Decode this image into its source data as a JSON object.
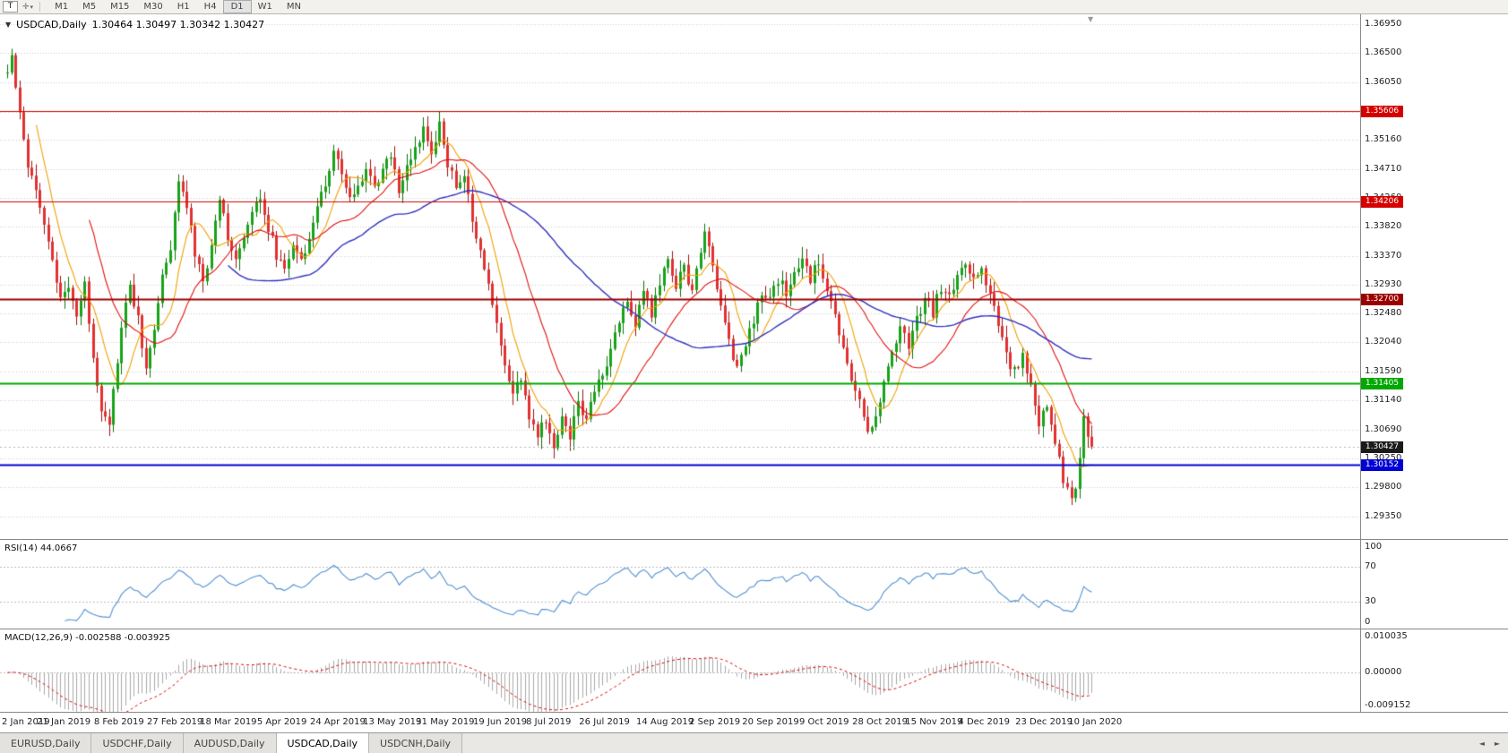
{
  "icons": {
    "collapse": "▼",
    "dropdown": "▾",
    "crosshair": "✛",
    "shift_marker": "▼",
    "tab_left": "◄",
    "tab_right": "►"
  },
  "toolbar": {
    "annotation_button": "T",
    "timeframes": [
      "M1",
      "M5",
      "M15",
      "M30",
      "H1",
      "H4",
      "D1",
      "W1",
      "MN"
    ],
    "active_timeframe": "D1"
  },
  "chart_header": {
    "symbol": "USDCAD,Daily",
    "ohlc": "1.30464 1.30497 1.30342 1.30427"
  },
  "price_axis": {
    "max": 1.371,
    "min": 1.29,
    "gridline_labels": [
      "1.36950",
      "1.36500",
      "1.36050",
      "1.35600",
      "1.35160",
      "1.34710",
      "1.34260",
      "1.33820",
      "1.33370",
      "1.32930",
      "1.32480",
      "1.32040",
      "1.31590",
      "1.31140",
      "1.30690",
      "1.30250",
      "1.29800",
      "1.29350"
    ]
  },
  "horizontal_lines": [
    {
      "price": 1.35606,
      "label": "1.35606",
      "color": "#d40000",
      "width": 1
    },
    {
      "price": 1.34206,
      "label": "1.34206",
      "color": "#d40000",
      "width": 1
    },
    {
      "price": 1.327,
      "label": "1.32700",
      "color": "#9b0000",
      "width": 2
    },
    {
      "price": 1.31405,
      "label": "1.31405",
      "color": "#00a800",
      "width": 2
    },
    {
      "price": 1.30152,
      "label": "1.30152",
      "color": "#0000d4",
      "width": 2
    }
  ],
  "current_price": {
    "value": 1.30427,
    "label": "1.30427",
    "box_color": "#1a1a1a"
  },
  "rsi_panel": {
    "label": "RSI(14) 44.0667",
    "value": 44.0667,
    "axis_labels": [
      "100",
      "70",
      "30",
      "0"
    ],
    "levels": [
      70,
      30
    ],
    "line_color": "#4f8fd0"
  },
  "macd_panel": {
    "label": "MACD(12,26,9) -0.002588 -0.003925",
    "main_value": -0.002588,
    "signal_value": -0.003925,
    "axis_labels": [
      "0.010035",
      "0.00000",
      "-0.009152"
    ],
    "axis_max": 0.010035,
    "axis_min": -0.009152,
    "histogram_color": "#a8a8a8",
    "signal_color": "#e00000"
  },
  "date_axis": {
    "labels": [
      "2 Jan 2019",
      "21 Jan 2019",
      "8 Feb 2019",
      "27 Feb 2019",
      "18 Mar 2019",
      "5 Apr 2019",
      "24 Apr 2019",
      "13 May 2019",
      "31 May 2019",
      "19 Jun 2019",
      "8 Jul 2019",
      "26 Jul 2019",
      "14 Aug 2019",
      "2 Sep 2019",
      "20 Sep 2019",
      "9 Oct 2019",
      "28 Oct 2019",
      "15 Nov 2019",
      "4 Dec 2019",
      "23 Dec 2019",
      "10 Jan 2020"
    ],
    "bar_indices": [
      0,
      13,
      27,
      40,
      53,
      67,
      80,
      93,
      106,
      120,
      133,
      146,
      160,
      173,
      186,
      200,
      213,
      226,
      239,
      253,
      266
    ]
  },
  "tabs": {
    "items": [
      {
        "label": "EURUSD,Daily",
        "active": false
      },
      {
        "label": "USDCHF,Daily",
        "active": false
      },
      {
        "label": "AUDUSD,Daily",
        "active": false
      },
      {
        "label": "USDCAD,Daily",
        "active": true
      },
      {
        "label": "USDCNH,Daily",
        "active": false
      }
    ]
  },
  "chart_data": {
    "type": "candlestick",
    "symbol": "USDCAD",
    "timeframe": "Daily",
    "bars": 267,
    "first_open": 1.362,
    "last_close": 1.30427,
    "close_anchors": [
      [
        0,
        1.362
      ],
      [
        1,
        1.3645
      ],
      [
        3,
        1.356
      ],
      [
        5,
        1.348
      ],
      [
        7,
        1.3445
      ],
      [
        9,
        1.339
      ],
      [
        11,
        1.333
      ],
      [
        13,
        1.3265
      ],
      [
        15,
        1.3295
      ],
      [
        17,
        1.3245
      ],
      [
        19,
        1.329
      ],
      [
        21,
        1.318
      ],
      [
        23,
        1.3105
      ],
      [
        25,
        1.308
      ],
      [
        26,
        1.3125
      ],
      [
        28,
        1.3225
      ],
      [
        30,
        1.329
      ],
      [
        32,
        1.324
      ],
      [
        34,
        1.316
      ],
      [
        36,
        1.3225
      ],
      [
        38,
        1.331
      ],
      [
        40,
        1.334
      ],
      [
        42,
        1.346
      ],
      [
        44,
        1.341
      ],
      [
        46,
        1.334
      ],
      [
        48,
        1.3295
      ],
      [
        50,
        1.335
      ],
      [
        52,
        1.343
      ],
      [
        54,
        1.337
      ],
      [
        56,
        1.333
      ],
      [
        58,
        1.336
      ],
      [
        60,
        1.34
      ],
      [
        62,
        1.343
      ],
      [
        64,
        1.338
      ],
      [
        66,
        1.334
      ],
      [
        68,
        1.331
      ],
      [
        70,
        1.336
      ],
      [
        72,
        1.333
      ],
      [
        74,
        1.337
      ],
      [
        76,
        1.341
      ],
      [
        78,
        1.345
      ],
      [
        80,
        1.35
      ],
      [
        82,
        1.346
      ],
      [
        84,
        1.342
      ],
      [
        86,
        1.3445
      ],
      [
        88,
        1.347
      ],
      [
        90,
        1.344
      ],
      [
        92,
        1.347
      ],
      [
        94,
        1.349
      ],
      [
        96,
        1.344
      ],
      [
        98,
        1.347
      ],
      [
        100,
        1.3505
      ],
      [
        102,
        1.353
      ],
      [
        104,
        1.349
      ],
      [
        106,
        1.354
      ],
      [
        108,
        1.348
      ],
      [
        110,
        1.344
      ],
      [
        112,
        1.3465
      ],
      [
        114,
        1.339
      ],
      [
        116,
        1.334
      ],
      [
        118,
        1.329
      ],
      [
        120,
        1.323
      ],
      [
        122,
        1.317
      ],
      [
        124,
        1.312
      ],
      [
        126,
        1.315
      ],
      [
        128,
        1.309
      ],
      [
        130,
        1.306
      ],
      [
        132,
        1.3085
      ],
      [
        134,
        1.3035
      ],
      [
        136,
        1.309
      ],
      [
        138,
        1.306
      ],
      [
        140,
        1.311
      ],
      [
        142,
        1.3085
      ],
      [
        144,
        1.313
      ],
      [
        146,
        1.316
      ],
      [
        148,
        1.319
      ],
      [
        150,
        1.324
      ],
      [
        152,
        1.327
      ],
      [
        154,
        1.323
      ],
      [
        156,
        1.328
      ],
      [
        158,
        1.325
      ],
      [
        160,
        1.329
      ],
      [
        162,
        1.333
      ],
      [
        164,
        1.329
      ],
      [
        166,
        1.332
      ],
      [
        168,
        1.328
      ],
      [
        170,
        1.334
      ],
      [
        171,
        1.338
      ],
      [
        173,
        1.332
      ],
      [
        175,
        1.326
      ],
      [
        177,
        1.321
      ],
      [
        179,
        1.316
      ],
      [
        181,
        1.32
      ],
      [
        183,
        1.324
      ],
      [
        185,
        1.328
      ],
      [
        187,
        1.3265
      ],
      [
        189,
        1.33
      ],
      [
        191,
        1.328
      ],
      [
        193,
        1.331
      ],
      [
        195,
        1.333
      ],
      [
        197,
        1.33
      ],
      [
        199,
        1.333
      ],
      [
        201,
        1.329
      ],
      [
        203,
        1.324
      ],
      [
        205,
        1.319
      ],
      [
        207,
        1.315
      ],
      [
        209,
        1.311
      ],
      [
        211,
        1.307
      ],
      [
        213,
        1.309
      ],
      [
        215,
        1.314
      ],
      [
        217,
        1.319
      ],
      [
        219,
        1.323
      ],
      [
        221,
        1.32
      ],
      [
        223,
        1.324
      ],
      [
        225,
        1.327
      ],
      [
        227,
        1.325
      ],
      [
        229,
        1.329
      ],
      [
        231,
        1.327
      ],
      [
        233,
        1.331
      ],
      [
        235,
        1.333
      ],
      [
        237,
        1.33
      ],
      [
        239,
        1.332
      ],
      [
        241,
        1.328
      ],
      [
        243,
        1.323
      ],
      [
        245,
        1.318
      ],
      [
        247,
        1.316
      ],
      [
        249,
        1.318
      ],
      [
        251,
        1.313
      ],
      [
        253,
        1.308
      ],
      [
        255,
        1.31
      ],
      [
        257,
        1.305
      ],
      [
        259,
        1.299
      ],
      [
        261,
        1.2958
      ],
      [
        262,
        1.2975
      ],
      [
        263,
        1.303
      ],
      [
        264,
        1.309
      ],
      [
        265,
        1.306
      ],
      [
        266,
        1.30427
      ]
    ],
    "moving_averages": [
      {
        "period": 8,
        "color": "#f0a000",
        "type": "sma"
      },
      {
        "period": 21,
        "color": "#e01010",
        "type": "sma"
      },
      {
        "period": 55,
        "color": "#3030c0",
        "type": "sma"
      }
    ],
    "candle_colors": {
      "up_fill": "#18a218",
      "up_border": "#0b720b",
      "down_fill": "#e23030",
      "down_border": "#a01212"
    },
    "indicators": {
      "rsi_period": 14,
      "macd_params": [
        12,
        26,
        9
      ]
    }
  }
}
